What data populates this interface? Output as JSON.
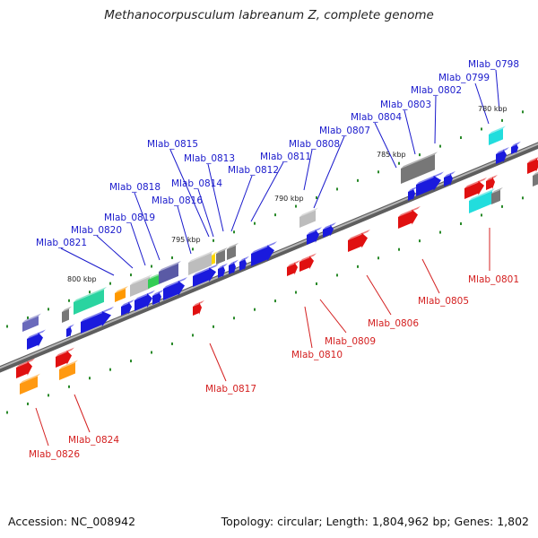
{
  "title": "Methanocorpusculum labreanum Z, complete genome",
  "footer": {
    "accession": "Accession: NC_008942",
    "summary": "Topology: circular; Length: 1,804,962 bp; Genes: 1,802"
  },
  "colors": {
    "forward_label": "#1a1acc",
    "reverse_label": "#d42020",
    "backbone": "#808080",
    "tick": "#2a8a2a"
  },
  "kbp_markers": [
    "780 kbp",
    "785 kbp",
    "790 kbp",
    "795 kbp",
    "800 kbp"
  ],
  "forward_labels": [
    "Mlab_0798",
    "Mlab_0799",
    "Mlab_0802",
    "Mlab_0803",
    "Mlab_0804",
    "Mlab_0807",
    "Mlab_0808",
    "Mlab_0811",
    "Mlab_0812",
    "Mlab_0813",
    "Mlab_0814",
    "Mlab_0815",
    "Mlab_0816",
    "Mlab_0818",
    "Mlab_0819",
    "Mlab_0820",
    "Mlab_0821"
  ],
  "reverse_labels": [
    "Mlab_0801",
    "Mlab_0805",
    "Mlab_0806",
    "Mlab_0809",
    "Mlab_0810",
    "Mlab_0817",
    "Mlab_0824",
    "Mlab_0826"
  ]
}
